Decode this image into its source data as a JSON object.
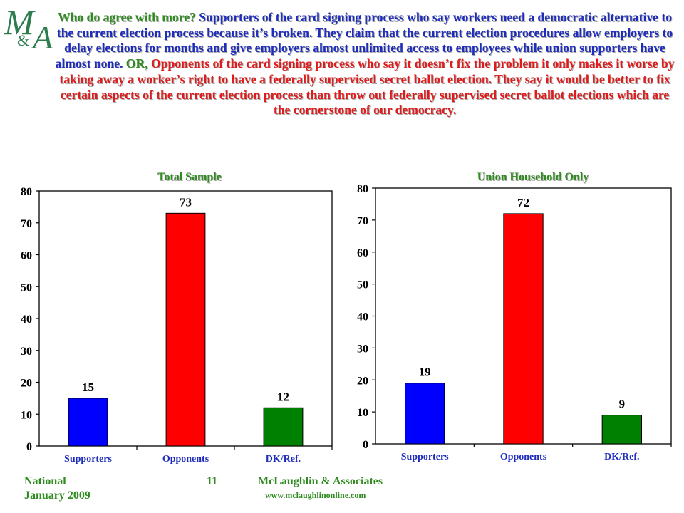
{
  "logo": {
    "text": "M&A"
  },
  "question": {
    "intro": "Who do agree with more? ",
    "option_a": "Supporters of the card signing process who say workers need a democratic alternative to the current election process because it’s broken. They claim that the current election procedures allow employers to delay elections for months and give employers almost unlimited access to employees while union supporters have almost none.",
    "or": " OR, ",
    "option_b": "Opponents of the card signing process who say it doesn’t fix the problem it only makes it worse by taking away a worker’s right to have a federally supervised secret ballot election. They say it would be better to fix certain aspects of the current election process than throw out federally supervised secret ballot elections which are the cornerstone of our democracy."
  },
  "chart_data": [
    {
      "type": "bar",
      "title": "Total Sample",
      "categories": [
        "Supporters",
        "Opponents",
        "DK/Ref."
      ],
      "values": [
        15,
        73,
        12
      ],
      "colors": [
        "#0000ff",
        "#ff0000",
        "#008000"
      ],
      "ylim": [
        0,
        80
      ],
      "yticks": [
        0,
        10,
        20,
        30,
        40,
        50,
        60,
        70,
        80
      ],
      "grid": false
    },
    {
      "type": "bar",
      "title": "Union Household Only",
      "categories": [
        "Supporters",
        "Opponents",
        "DK/Ref."
      ],
      "values": [
        19,
        72,
        9
      ],
      "colors": [
        "#0000ff",
        "#ff0000",
        "#008000"
      ],
      "ylim": [
        0,
        80
      ],
      "yticks": [
        0,
        10,
        20,
        30,
        40,
        50,
        60,
        70,
        80
      ],
      "grid": false
    }
  ],
  "footer": {
    "left_line1": "National",
    "left_line2": "January 2009",
    "page_number": "11",
    "company": "McLaughlin & Associates",
    "website": "www.mclaughlinonline.com"
  }
}
